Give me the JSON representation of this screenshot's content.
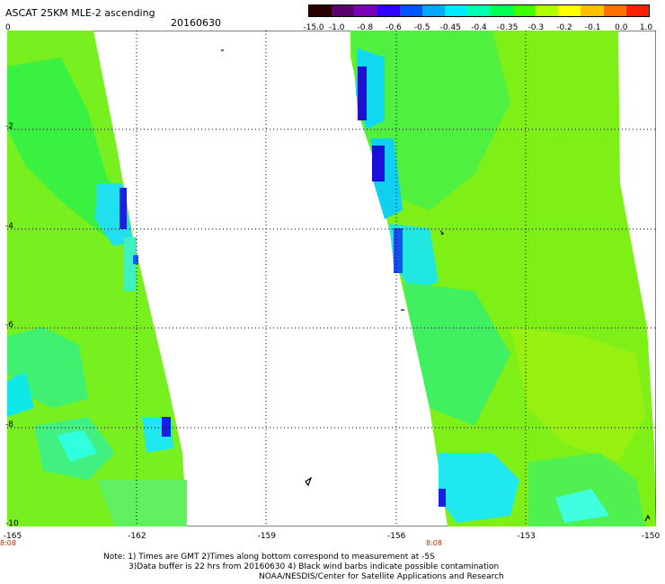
{
  "header": {
    "title": "ASCAT 25KM MLE-2 ascending",
    "date": "20160630"
  },
  "colorbar": {
    "labels": [
      "-15.0",
      "-1.0",
      "-0.8",
      "-0.6",
      "-0.5",
      "-0.45",
      "-0.4",
      "-0.35",
      "-0.3",
      "-0.2",
      "-0.1",
      "0.0",
      "1.0"
    ],
    "colors": [
      "#2b0000",
      "#5a0070",
      "#7a00b8",
      "#3200ff",
      "#0055ff",
      "#00a8ff",
      "#00e8ff",
      "#00ffb0",
      "#00ff50",
      "#40ff00",
      "#b0ff00",
      "#ffff00",
      "#ffc000",
      "#ff7000",
      "#ff2000"
    ]
  },
  "axes": {
    "x_ticks": [
      "-165",
      "-162",
      "-159",
      "-156",
      "-153",
      "-150"
    ],
    "y_ticks": [
      "0",
      "-2",
      "-4",
      "-6",
      "-8",
      "-10"
    ],
    "time_labels": [
      "8:08",
      "8:08"
    ]
  },
  "notes": {
    "line1": "Note: 1) Times are GMT 2)Times along bottom correspond to measurement at -5S",
    "line2": "3)Data buffer is 22 hrs from 20160630 4) Black wind barbs indicate possible contamination",
    "line3": "NOAA/NESDIS/Center for Satellite Applications and Research"
  },
  "map_colors": {
    "base_green": "#7af51a",
    "bright_green": "#2ef53a",
    "lime": "#a8f000",
    "cyan": "#00f0f0",
    "light_cyan": "#40ffe0",
    "blue": "#1040ff",
    "deep_blue": "#2010d0"
  }
}
